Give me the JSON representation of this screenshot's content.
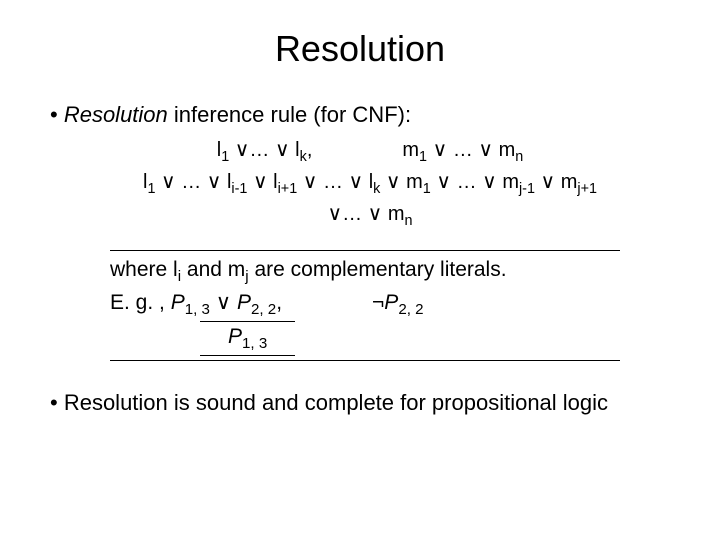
{
  "colors": {
    "background": "#ffffff",
    "text": "#000000"
  },
  "title": "Resolution",
  "bullet1_prefix": "Resolution",
  "bullet1_rest": " inference rule (for CNF):",
  "rule": {
    "premise_left": "l<sub>1</sub> ∨… ∨ l<sub>k</sub>,",
    "premise_right": "m<sub>1</sub> ∨ … ∨ m<sub>n</sub>",
    "conclusion1": "l<sub>1</sub> ∨ … ∨ l<sub>i-1</sub> ∨ l<sub>i+1</sub> ∨ … ∨ l<sub>k</sub> ∨ m<sub>1</sub> ∨ … ∨ m<sub>j-1</sub> ∨ m<sub>j+1</sub>",
    "conclusion2": "∨… ∨ m<sub>n</sub>"
  },
  "where_line": "where l<sub>i</sub> and m<sub>j</sub> are complementary literals.",
  "eg_prefix": "E. g. , ",
  "eg_left": "<i>P</i><sub>1, 3</sub> ∨ <i>P</i><sub>2, 2</sub>,",
  "eg_right": "¬<i>P</i><sub>2, 2</sub>",
  "eg_conclusion": "<i>P</i><sub>1, 3</sub>",
  "bullet2": "Resolution is sound and complete for propositional logic"
}
